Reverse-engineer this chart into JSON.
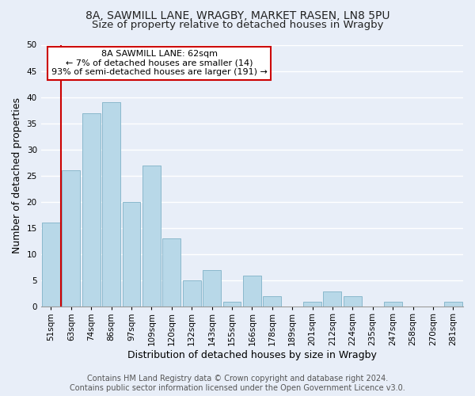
{
  "title1": "8A, SAWMILL LANE, WRAGBY, MARKET RASEN, LN8 5PU",
  "title2": "Size of property relative to detached houses in Wragby",
  "xlabel": "Distribution of detached houses by size in Wragby",
  "ylabel": "Number of detached properties",
  "bar_color": "#b8d8e8",
  "bar_edge_color": "#8ab8cc",
  "bin_labels": [
    "51sqm",
    "63sqm",
    "74sqm",
    "86sqm",
    "97sqm",
    "109sqm",
    "120sqm",
    "132sqm",
    "143sqm",
    "155sqm",
    "166sqm",
    "178sqm",
    "189sqm",
    "201sqm",
    "212sqm",
    "224sqm",
    "235sqm",
    "247sqm",
    "258sqm",
    "270sqm",
    "281sqm"
  ],
  "bar_heights": [
    16,
    26,
    37,
    39,
    20,
    27,
    13,
    5,
    7,
    1,
    6,
    2,
    0,
    1,
    3,
    2,
    0,
    1,
    0,
    0,
    1
  ],
  "ylim": [
    0,
    50
  ],
  "yticks": [
    0,
    5,
    10,
    15,
    20,
    25,
    30,
    35,
    40,
    45,
    50
  ],
  "annotation_title": "8A SAWMILL LANE: 62sqm",
  "annotation_line1": "← 7% of detached houses are smaller (14)",
  "annotation_line2": "93% of semi-detached houses are larger (191) →",
  "annotation_box_color": "#ffffff",
  "annotation_box_edge": "#cc0000",
  "vline_color": "#cc0000",
  "footer1": "Contains HM Land Registry data © Crown copyright and database right 2024.",
  "footer2": "Contains public sector information licensed under the Open Government Licence v3.0.",
  "background_color": "#e8eef8",
  "plot_background": "#e8eef8",
  "grid_color": "#ffffff",
  "title_fontsize": 10,
  "subtitle_fontsize": 9.5,
  "axis_label_fontsize": 9,
  "tick_fontsize": 7.5,
  "footer_fontsize": 7,
  "annot_fontsize": 8
}
